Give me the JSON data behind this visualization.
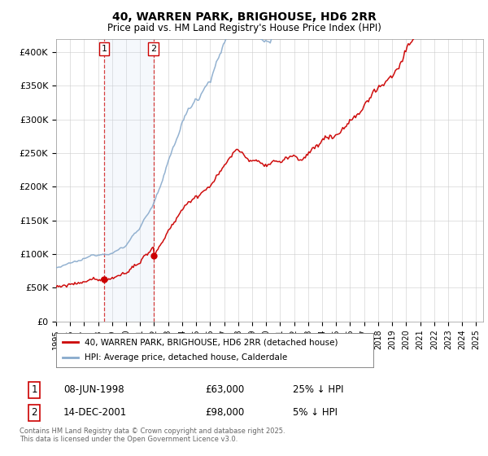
{
  "title": "40, WARREN PARK, BRIGHOUSE, HD6 2RR",
  "subtitle": "Price paid vs. HM Land Registry's House Price Index (HPI)",
  "legend_property": "40, WARREN PARK, BRIGHOUSE, HD6 2RR (detached house)",
  "legend_hpi": "HPI: Average price, detached house, Calderdale",
  "transaction1_label": "1",
  "transaction1_date": "08-JUN-1998",
  "transaction1_price": "£63,000",
  "transaction1_hpi": "25% ↓ HPI",
  "transaction1_year": 1998.44,
  "transaction1_value": 63000,
  "transaction2_label": "2",
  "transaction2_date": "14-DEC-2001",
  "transaction2_price": "£98,000",
  "transaction2_hpi": "5% ↓ HPI",
  "transaction2_year": 2001.95,
  "transaction2_value": 98000,
  "copyright": "Contains HM Land Registry data © Crown copyright and database right 2025.\nThis data is licensed under the Open Government Licence v3.0.",
  "property_line_color": "#cc0000",
  "hpi_line_color": "#88aacc",
  "highlight_color": "#ddeeff",
  "vline_color": "#cc0000",
  "ylim_min": 0,
  "ylim_max": 420000,
  "xlim_min": 1995.0,
  "xlim_max": 2025.5,
  "yticks": [
    0,
    50000,
    100000,
    150000,
    200000,
    250000,
    300000,
    350000,
    400000
  ],
  "ytick_labels": [
    "£0",
    "£50K",
    "£100K",
    "£150K",
    "£200K",
    "£250K",
    "£300K",
    "£350K",
    "£400K"
  ]
}
